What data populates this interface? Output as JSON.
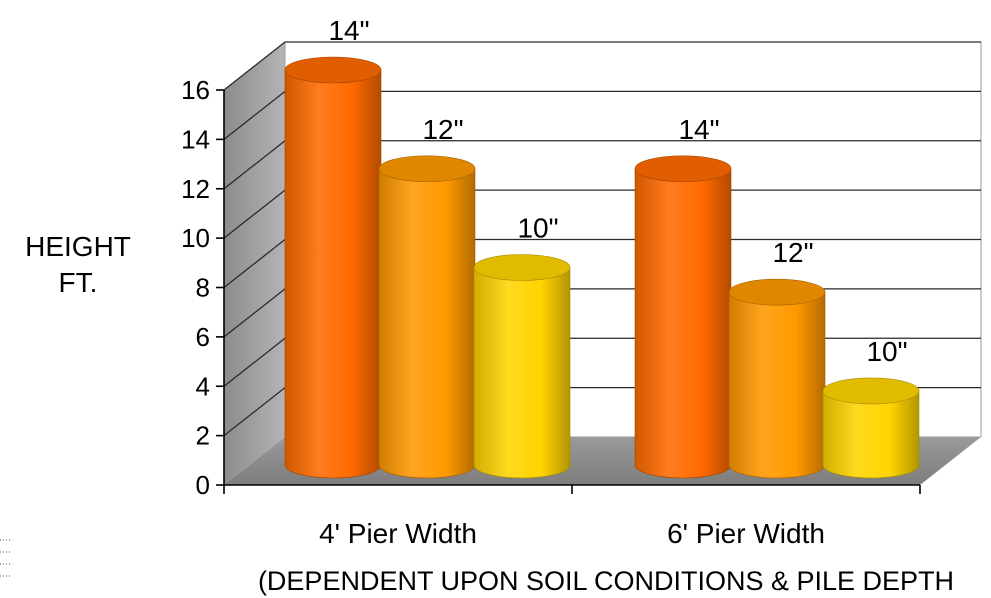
{
  "chart_data": {
    "type": "bar",
    "style": "3d-cylinder",
    "categories": [
      "4' Pier Width",
      "6' Pier Width"
    ],
    "series": [
      {
        "values": [
          16,
          12
        ],
        "labels": [
          "14\"",
          "14\""
        ],
        "color": "#ff6a00"
      },
      {
        "values": [
          12,
          7
        ],
        "labels": [
          "12\"",
          "12\""
        ],
        "color": "#ff9900"
      },
      {
        "values": [
          8,
          3
        ],
        "labels": [
          "10\"",
          "10\""
        ],
        "color": "#ffd400"
      }
    ],
    "ylabel_lines": [
      "HEIGHT",
      "FT."
    ],
    "yticks": [
      0,
      2,
      4,
      6,
      8,
      10,
      12,
      14,
      16
    ],
    "ylim": [
      0,
      16
    ],
    "grid": true,
    "legend": "none",
    "note": "(DEPENDENT UPON SOIL CONDITIONS & PILE DEPTH"
  }
}
